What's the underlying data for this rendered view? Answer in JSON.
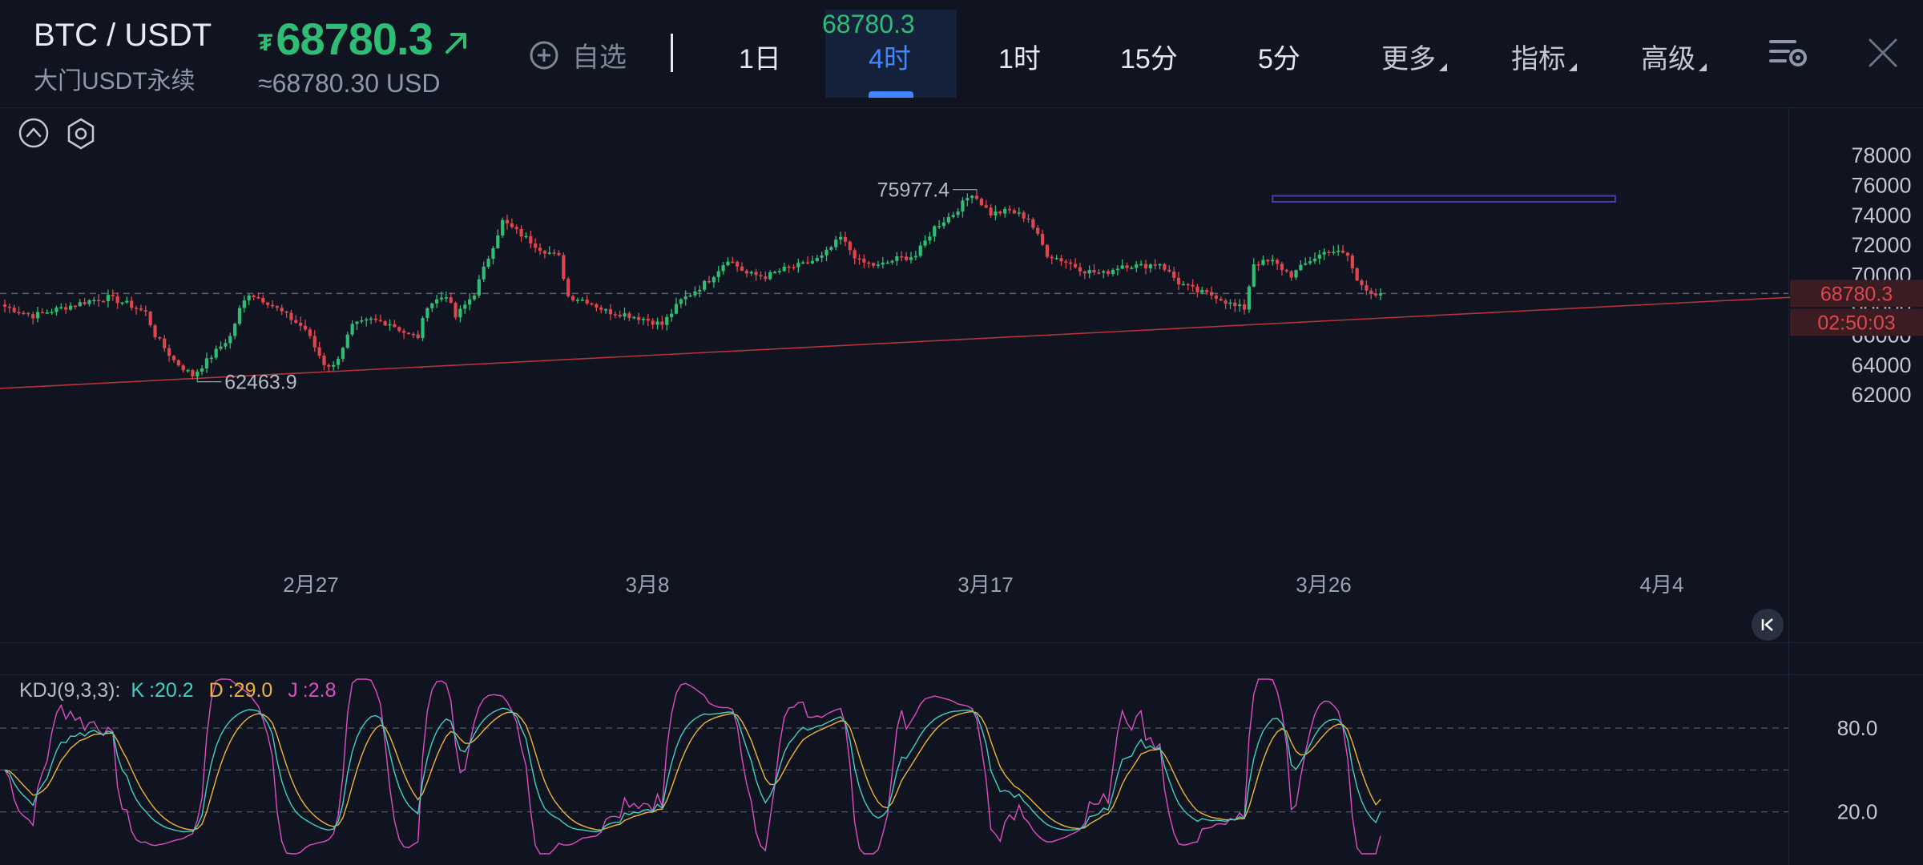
{
  "header": {
    "pair": "BTC / USDT",
    "subname": "大门USDT永续",
    "currency_glyph": "₮",
    "price": "68780.3",
    "usd_approx": "≈68780.30 USD",
    "favorite_label": "自选",
    "ghost_price": "68780.3",
    "tabs": [
      {
        "label": "1日",
        "active": false
      },
      {
        "label": "4时",
        "active": true
      },
      {
        "label": "1时",
        "active": false
      },
      {
        "label": "15分",
        "active": false
      },
      {
        "label": "5分",
        "active": false
      }
    ],
    "dropdowns": [
      "更多",
      "指标",
      "高级"
    ]
  },
  "colors": {
    "up": "#2ebd74",
    "down": "#e0454d",
    "accent": "#3f86ff",
    "k_line": "#3fd1c4",
    "d_line": "#f0b43c",
    "j_line": "#e04cc4",
    "trendline": "#b8323b",
    "range_box": "#4b3aa8"
  },
  "chart_data": [
    {
      "type": "candlestick",
      "y_ticks": [
        78000,
        76000,
        74000,
        72000,
        70000,
        68000,
        66000,
        64000,
        62000
      ],
      "ylim": [
        61000,
        79500
      ],
      "x_ticks": [
        "2月27",
        "3月8",
        "3月17",
        "3月26",
        "4月4"
      ],
      "current_price": "68780.3",
      "countdown": "02:50:03",
      "high_label": "75977.4",
      "low_label": "62463.9",
      "close_path": [
        [
          0,
          67900
        ],
        [
          6,
          67300
        ],
        [
          12,
          67800
        ],
        [
          18,
          68300
        ],
        [
          22,
          68500
        ],
        [
          26,
          68100
        ],
        [
          30,
          67500
        ],
        [
          32,
          66000
        ],
        [
          36,
          64300
        ],
        [
          40,
          63300
        ],
        [
          44,
          64600
        ],
        [
          48,
          65900
        ],
        [
          50,
          67700
        ],
        [
          52,
          68800
        ],
        [
          56,
          68200
        ],
        [
          60,
          67300
        ],
        [
          64,
          66400
        ],
        [
          66,
          65200
        ],
        [
          68,
          64100
        ],
        [
          70,
          63900
        ],
        [
          74,
          66600
        ],
        [
          78,
          67000
        ],
        [
          82,
          66800
        ],
        [
          86,
          66000
        ],
        [
          88,
          65900
        ],
        [
          90,
          68000
        ],
        [
          94,
          68700
        ],
        [
          96,
          67200
        ],
        [
          100,
          68800
        ],
        [
          104,
          72000
        ],
        [
          106,
          73600
        ],
        [
          110,
          72700
        ],
        [
          114,
          71800
        ],
        [
          118,
          71200
        ],
        [
          120,
          68600
        ],
        [
          124,
          68300
        ],
        [
          128,
          67600
        ],
        [
          132,
          67400
        ],
        [
          136,
          67100
        ],
        [
          140,
          66700
        ],
        [
          144,
          68300
        ],
        [
          148,
          69200
        ],
        [
          150,
          69700
        ],
        [
          154,
          71100
        ],
        [
          158,
          70100
        ],
        [
          162,
          69900
        ],
        [
          166,
          70400
        ],
        [
          170,
          70700
        ],
        [
          174,
          71200
        ],
        [
          178,
          72500
        ],
        [
          182,
          70900
        ],
        [
          186,
          70600
        ],
        [
          190,
          71100
        ],
        [
          194,
          71300
        ],
        [
          198,
          73200
        ],
        [
          202,
          74100
        ],
        [
          206,
          75500
        ],
        [
          210,
          74100
        ],
        [
          214,
          74300
        ],
        [
          218,
          73800
        ],
        [
          222,
          71400
        ],
        [
          226,
          70900
        ],
        [
          230,
          70300
        ],
        [
          234,
          70100
        ],
        [
          238,
          70700
        ],
        [
          242,
          70600
        ],
        [
          246,
          70800
        ],
        [
          250,
          69500
        ],
        [
          254,
          68900
        ],
        [
          258,
          68600
        ],
        [
          262,
          67900
        ],
        [
          264,
          67800
        ],
        [
          266,
          70800
        ],
        [
          270,
          70900
        ],
        [
          274,
          70000
        ],
        [
          278,
          71000
        ],
        [
          282,
          71700
        ],
        [
          286,
          71300
        ],
        [
          288,
          69600
        ],
        [
          292,
          68700
        ]
      ],
      "trendline": {
        "start": [
          -10,
          62300
        ],
        "end": [
          385,
          68600
        ]
      },
      "range_box": {
        "x": [
          270,
          343
        ],
        "y": [
          74900,
          75300
        ]
      }
    },
    {
      "type": "line",
      "title": "KDJ(9,3,3)",
      "series": [
        {
          "name": "K",
          "last_value": "20.2"
        },
        {
          "name": "D",
          "last_value": "29.0"
        },
        {
          "name": "J",
          "last_value": "2.8"
        }
      ],
      "y_ticks": [
        "80.0",
        "20.0"
      ],
      "ylim": [
        -10,
        115
      ]
    }
  ]
}
